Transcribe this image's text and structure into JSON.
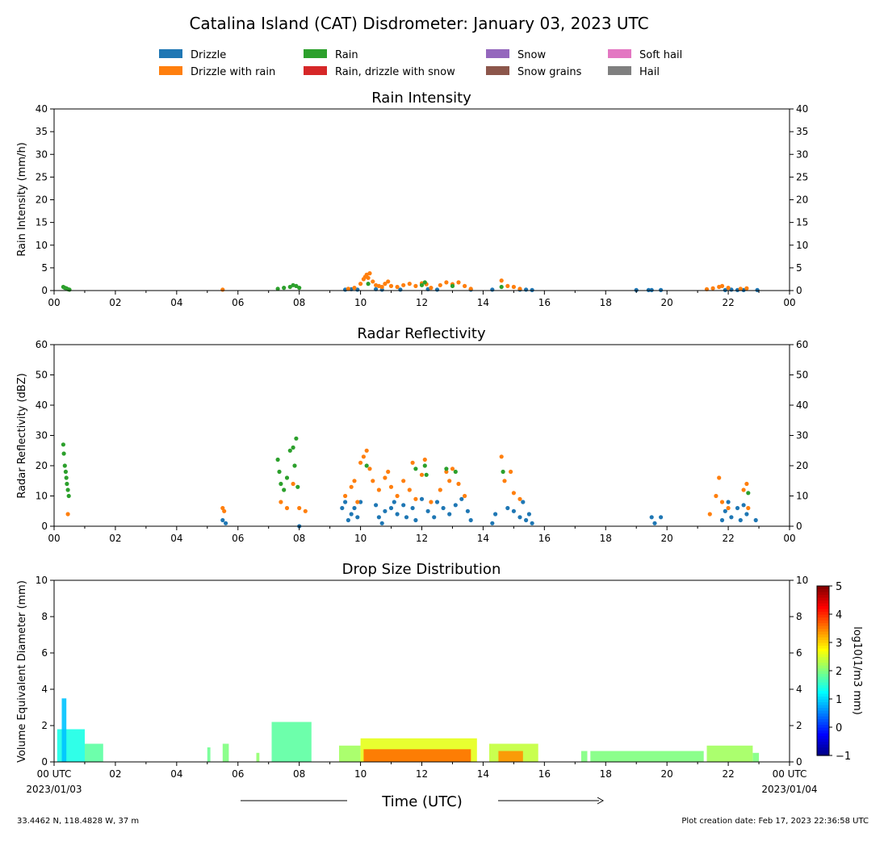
{
  "figure": {
    "title": "Catalina Island (CAT) Disdrometer: January 03, 2023 UTC",
    "footer_left": "33.4462 N, 118.4828 W, 37 m",
    "footer_right": "Plot creation date: Feb 17, 2023 22:36:58 UTC",
    "time_axis_label": "Time (UTC)"
  },
  "legend": {
    "placement": "top",
    "items": [
      {
        "label": "Drizzle",
        "color": "#1f77b4"
      },
      {
        "label": "Drizzle with rain",
        "color": "#ff7f0e"
      },
      {
        "label": "Rain",
        "color": "#2ca02c"
      },
      {
        "label": "Rain, drizzle with snow",
        "color": "#d62728"
      },
      {
        "label": "Snow",
        "color": "#9467bd"
      },
      {
        "label": "Snow grains",
        "color": "#8c564b"
      },
      {
        "label": "Soft hail",
        "color": "#e377c2"
      },
      {
        "label": "Hail",
        "color": "#7f7f7f"
      }
    ]
  },
  "chart_data": [
    {
      "type": "scatter",
      "title": "Rain Intensity",
      "ylabel": "Rain Intensity (mm/h)",
      "xlim": [
        0,
        24
      ],
      "ylim": [
        0,
        40
      ],
      "yticks": [
        0,
        5,
        10,
        15,
        20,
        25,
        30,
        35,
        40
      ],
      "xtick_labels": [
        "00",
        "02",
        "04",
        "06",
        "08",
        "10",
        "12",
        "14",
        "16",
        "18",
        "20",
        "22",
        "00"
      ],
      "grid": false,
      "series": [
        {
          "name": "Drizzle",
          "color": "#1f77b4",
          "points": [
            [
              9.5,
              0.2
            ],
            [
              9.7,
              0.3
            ],
            [
              9.9,
              0.2
            ],
            [
              10.5,
              0.3
            ],
            [
              10.7,
              0.2
            ],
            [
              11.3,
              0.2
            ],
            [
              12.2,
              0.3
            ],
            [
              12.5,
              0.2
            ],
            [
              13.6,
              0.2
            ],
            [
              14.3,
              0.2
            ],
            [
              15.2,
              0.2
            ],
            [
              15.4,
              0.2
            ],
            [
              15.6,
              0.1
            ],
            [
              19.0,
              0.1
            ],
            [
              19.4,
              0.1
            ],
            [
              19.5,
              0.1
            ],
            [
              19.8,
              0.1
            ],
            [
              21.9,
              0.1
            ],
            [
              22.1,
              0.2
            ],
            [
              22.3,
              0.1
            ],
            [
              22.5,
              0.1
            ],
            [
              22.95,
              0.1
            ]
          ]
        },
        {
          "name": "Drizzle with rain",
          "color": "#ff7f0e",
          "points": [
            [
              5.5,
              0.2
            ],
            [
              9.6,
              0.4
            ],
            [
              9.8,
              0.6
            ],
            [
              10.0,
              1.5
            ],
            [
              10.1,
              2.5
            ],
            [
              10.15,
              3.0
            ],
            [
              10.2,
              3.5
            ],
            [
              10.25,
              2.8
            ],
            [
              10.3,
              3.8
            ],
            [
              10.4,
              2.0
            ],
            [
              10.5,
              1.2
            ],
            [
              10.6,
              1.0
            ],
            [
              10.7,
              0.8
            ],
            [
              10.8,
              1.5
            ],
            [
              10.9,
              2.0
            ],
            [
              11.0,
              1.0
            ],
            [
              11.2,
              0.8
            ],
            [
              11.4,
              1.2
            ],
            [
              11.6,
              1.5
            ],
            [
              11.8,
              1.0
            ],
            [
              12.0,
              1.6
            ],
            [
              12.15,
              1.4
            ],
            [
              12.3,
              0.6
            ],
            [
              12.6,
              1.2
            ],
            [
              12.8,
              1.8
            ],
            [
              13.0,
              1.4
            ],
            [
              13.2,
              1.8
            ],
            [
              13.4,
              1.0
            ],
            [
              13.6,
              0.4
            ],
            [
              14.6,
              2.2
            ],
            [
              14.8,
              1.0
            ],
            [
              15.0,
              0.8
            ],
            [
              15.2,
              0.4
            ],
            [
              21.3,
              0.3
            ],
            [
              21.5,
              0.5
            ],
            [
              21.7,
              0.8
            ],
            [
              21.8,
              1.0
            ],
            [
              22.0,
              0.6
            ],
            [
              22.4,
              0.4
            ],
            [
              22.6,
              0.5
            ]
          ]
        },
        {
          "name": "Rain",
          "color": "#2ca02c",
          "points": [
            [
              0.3,
              0.8
            ],
            [
              0.35,
              0.6
            ],
            [
              0.4,
              0.5
            ],
            [
              0.45,
              0.3
            ],
            [
              0.5,
              0.2
            ],
            [
              7.3,
              0.4
            ],
            [
              7.5,
              0.6
            ],
            [
              7.7,
              0.8
            ],
            [
              7.8,
              1.2
            ],
            [
              7.9,
              1.0
            ],
            [
              8.0,
              0.6
            ],
            [
              10.25,
              1.5
            ],
            [
              12.0,
              1.2
            ],
            [
              12.1,
              1.8
            ],
            [
              13.0,
              1.0
            ],
            [
              14.6,
              0.8
            ]
          ]
        }
      ]
    },
    {
      "type": "scatter",
      "title": "Radar Reflectivity",
      "ylabel": "Radar Reflectivity (dBZ)",
      "xlim": [
        0,
        24
      ],
      "ylim": [
        0,
        60
      ],
      "yticks": [
        0,
        10,
        20,
        30,
        40,
        50,
        60
      ],
      "xtick_labels": [
        "00",
        "02",
        "04",
        "06",
        "08",
        "10",
        "12",
        "14",
        "16",
        "18",
        "20",
        "22",
        "00"
      ],
      "grid": false,
      "series": [
        {
          "name": "Drizzle",
          "color": "#1f77b4",
          "points": [
            [
              5.5,
              2
            ],
            [
              5.6,
              1
            ],
            [
              8.0,
              0
            ],
            [
              9.4,
              6
            ],
            [
              9.5,
              8
            ],
            [
              9.6,
              2
            ],
            [
              9.7,
              4
            ],
            [
              9.8,
              6
            ],
            [
              9.9,
              3
            ],
            [
              10.0,
              8
            ],
            [
              10.5,
              7
            ],
            [
              10.6,
              3
            ],
            [
              10.7,
              1
            ],
            [
              10.8,
              5
            ],
            [
              11.0,
              6
            ],
            [
              11.1,
              8
            ],
            [
              11.2,
              4
            ],
            [
              11.4,
              7
            ],
            [
              11.5,
              3
            ],
            [
              11.7,
              6
            ],
            [
              11.8,
              2
            ],
            [
              12.0,
              9
            ],
            [
              12.2,
              5
            ],
            [
              12.4,
              3
            ],
            [
              12.5,
              8
            ],
            [
              12.7,
              6
            ],
            [
              12.9,
              4
            ],
            [
              13.1,
              7
            ],
            [
              13.3,
              9
            ],
            [
              13.5,
              5
            ],
            [
              13.6,
              2
            ],
            [
              14.3,
              1
            ],
            [
              14.4,
              4
            ],
            [
              14.8,
              6
            ],
            [
              15.0,
              5
            ],
            [
              15.2,
              3
            ],
            [
              15.3,
              8
            ],
            [
              15.4,
              2
            ],
            [
              15.5,
              4
            ],
            [
              15.6,
              1
            ],
            [
              19.5,
              3
            ],
            [
              19.6,
              1
            ],
            [
              19.8,
              3
            ],
            [
              21.8,
              2
            ],
            [
              21.9,
              5
            ],
            [
              22.0,
              8
            ],
            [
              22.1,
              3
            ],
            [
              22.3,
              6
            ],
            [
              22.4,
              2
            ],
            [
              22.5,
              7
            ],
            [
              22.6,
              4
            ],
            [
              22.9,
              2
            ]
          ]
        },
        {
          "name": "Drizzle with rain",
          "color": "#ff7f0e",
          "points": [
            [
              0.45,
              4
            ],
            [
              5.5,
              6
            ],
            [
              5.55,
              5
            ],
            [
              7.4,
              8
            ],
            [
              7.6,
              6
            ],
            [
              7.8,
              14
            ],
            [
              8.0,
              6
            ],
            [
              8.2,
              5
            ],
            [
              9.5,
              10
            ],
            [
              9.7,
              13
            ],
            [
              9.8,
              15
            ],
            [
              9.9,
              8
            ],
            [
              10.0,
              21
            ],
            [
              10.1,
              23
            ],
            [
              10.2,
              25
            ],
            [
              10.3,
              19
            ],
            [
              10.4,
              15
            ],
            [
              10.6,
              12
            ],
            [
              10.8,
              16
            ],
            [
              10.9,
              18
            ],
            [
              11.0,
              13
            ],
            [
              11.2,
              10
            ],
            [
              11.4,
              15
            ],
            [
              11.6,
              12
            ],
            [
              11.7,
              21
            ],
            [
              11.8,
              9
            ],
            [
              12.0,
              17
            ],
            [
              12.1,
              22
            ],
            [
              12.3,
              8
            ],
            [
              12.6,
              12
            ],
            [
              12.8,
              18
            ],
            [
              12.9,
              15
            ],
            [
              13.0,
              19
            ],
            [
              13.2,
              14
            ],
            [
              13.4,
              10
            ],
            [
              14.6,
              23
            ],
            [
              14.7,
              15
            ],
            [
              14.9,
              18
            ],
            [
              15.0,
              11
            ],
            [
              15.2,
              9
            ],
            [
              21.4,
              4
            ],
            [
              21.6,
              10
            ],
            [
              21.7,
              16
            ],
            [
              21.8,
              8
            ],
            [
              22.0,
              6
            ],
            [
              22.5,
              12
            ],
            [
              22.6,
              14
            ],
            [
              22.65,
              6
            ]
          ]
        },
        {
          "name": "Rain",
          "color": "#2ca02c",
          "points": [
            [
              0.3,
              27
            ],
            [
              0.32,
              24
            ],
            [
              0.35,
              20
            ],
            [
              0.38,
              18
            ],
            [
              0.4,
              16
            ],
            [
              0.42,
              14
            ],
            [
              0.45,
              12
            ],
            [
              0.48,
              10
            ],
            [
              7.3,
              22
            ],
            [
              7.35,
              18
            ],
            [
              7.4,
              14
            ],
            [
              7.5,
              12
            ],
            [
              7.6,
              16
            ],
            [
              7.7,
              25
            ],
            [
              7.8,
              26
            ],
            [
              7.85,
              20
            ],
            [
              7.9,
              29
            ],
            [
              7.95,
              13
            ],
            [
              10.2,
              20
            ],
            [
              11.8,
              19
            ],
            [
              12.1,
              20
            ],
            [
              12.15,
              17
            ],
            [
              12.8,
              19
            ],
            [
              13.1,
              18
            ],
            [
              14.65,
              18
            ],
            [
              22.65,
              11
            ]
          ]
        }
      ]
    },
    {
      "type": "heatmap",
      "title": "Drop Size Distribution",
      "ylabel": "Volume Equivalent Diameter (mm)",
      "xlim": [
        0,
        24
      ],
      "ylim": [
        0,
        10
      ],
      "yticks": [
        0,
        2,
        4,
        6,
        8,
        10
      ],
      "xtick_labels": [
        "00 UTC",
        "02",
        "04",
        "06",
        "08",
        "10",
        "12",
        "14",
        "16",
        "18",
        "20",
        "22",
        "00 UTC"
      ],
      "xtick_sublabels_first": "2023/01/03",
      "xtick_sublabels_last": "2023/01/04",
      "colorbar": {
        "label": "log10(1/m3 mm)",
        "range": [
          -1,
          5
        ],
        "ticks": [
          -1,
          0,
          1,
          2,
          3,
          4,
          5
        ],
        "colormap": "jet"
      },
      "cells": [
        {
          "t": [
            0.1,
            1.0
          ],
          "dmax": 1.8,
          "value": 1.4
        },
        {
          "t": [
            0.25,
            0.4
          ],
          "dmax": 3.5,
          "value": 0.9
        },
        {
          "t": [
            1.0,
            1.6
          ],
          "dmax": 1.0,
          "value": 1.8
        },
        {
          "t": [
            5.0,
            5.1
          ],
          "dmax": 0.8,
          "value": 1.9
        },
        {
          "t": [
            5.5,
            5.7
          ],
          "dmax": 1.0,
          "value": 2.0
        },
        {
          "t": [
            6.6,
            6.7
          ],
          "dmax": 0.5,
          "value": 2.1
        },
        {
          "t": [
            7.1,
            8.4
          ],
          "dmax": 2.2,
          "value": 1.8
        },
        {
          "t": [
            9.3,
            10.0
          ],
          "dmax": 0.9,
          "value": 2.2
        },
        {
          "t": [
            10.0,
            13.8
          ],
          "dmax": 1.3,
          "value": 2.6
        },
        {
          "t": [
            10.1,
            13.6
          ],
          "dmax": 0.7,
          "value": 3.6
        },
        {
          "t": [
            14.2,
            15.8
          ],
          "dmax": 1.0,
          "value": 2.4
        },
        {
          "t": [
            14.5,
            15.3
          ],
          "dmax": 0.6,
          "value": 3.4
        },
        {
          "t": [
            17.2,
            17.4
          ],
          "dmax": 0.6,
          "value": 2.0
        },
        {
          "t": [
            17.5,
            21.2
          ],
          "dmax": 0.6,
          "value": 2.0
        },
        {
          "t": [
            21.3,
            22.8
          ],
          "dmax": 0.9,
          "value": 2.2
        },
        {
          "t": [
            22.8,
            23.0
          ],
          "dmax": 0.5,
          "value": 2.0
        }
      ]
    }
  ]
}
